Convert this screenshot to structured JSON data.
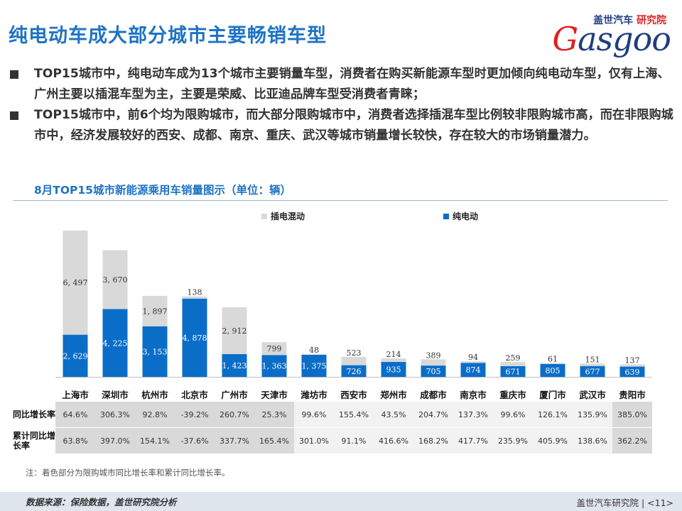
{
  "page": {
    "title": "纯电动车成大部分城市主要畅销车型",
    "bullets": [
      "TOP15城市中，纯电动车成为13个城市主要销量车型，消费者在购买新能源车型时更加倾向纯电动车型，仅有上海、广州主要以插混车型为主，主要是荣威、比亚迪品牌车型受消费者青睐；",
      "TOP15城市中，前6个均为限购城市，而大部分限购城市中，消费者选择插混车型比例较非限购城市高，而在非限购城市中，经济发展较好的西安、成都、南京、重庆、武汉等城市销量增长较快，存在较大的市场销量潜力。"
    ],
    "chart_title": "8月TOP15城市新能源乘用车销量图示（单位：辆）",
    "note": "注：着色部分为限购城市同比增长率和累计同比增长率。",
    "source": "数据来源：保险数据，盖世研究院分析",
    "footer_org": "盖世汽车研究院",
    "page_number": "<11>"
  },
  "logo": {
    "cn_name": "盖世汽车",
    "cn_dept": "研究院",
    "word_g": "G",
    "word_rest": "asgoo"
  },
  "colors": {
    "title_blue": "#1f73c4",
    "bev": "#0a6ec9",
    "phev": "#d9d9d9",
    "restricted_cell": "#d9d9d9",
    "normal_cell": "#f2f2f2"
  },
  "chart_data": {
    "type": "bar",
    "stacked": true,
    "categories": [
      "上海市",
      "深圳市",
      "杭州市",
      "北京市",
      "广州市",
      "天津市",
      "潍坊市",
      "西安市",
      "郑州市",
      "成都市",
      "南京市",
      "重庆市",
      "厦门市",
      "武汉市",
      "贵阳市"
    ],
    "series": [
      {
        "name": "纯电动",
        "color": "#0a6ec9",
        "values": [
          2629,
          4225,
          3153,
          4878,
          1423,
          1363,
          1375,
          726,
          935,
          705,
          874,
          671,
          805,
          677,
          639
        ],
        "labels": [
          "2, 629",
          "4, 225",
          "3, 153",
          "4, 878",
          "1, 423",
          "1, 363",
          "1, 375",
          "726",
          "935",
          "705",
          "874",
          "671",
          "805",
          "677",
          "639"
        ]
      },
      {
        "name": "插电混动",
        "color": "#d9d9d9",
        "values": [
          6497,
          3670,
          1897,
          138,
          2912,
          799,
          48,
          523,
          214,
          389,
          94,
          259,
          61,
          151,
          137
        ],
        "labels": [
          "6, 497",
          "3, 670",
          "1, 897",
          "138",
          "2, 912",
          "799",
          "48",
          "523",
          "214",
          "389",
          "94",
          "259",
          "61",
          "151",
          "137"
        ]
      }
    ],
    "legend_position": "top"
  },
  "table": {
    "rows": [
      {
        "header": "同比增长率",
        "values": [
          "64.6%",
          "306.3%",
          "92.8%",
          "-39.2%",
          "260.7%",
          "25.3%",
          "99.6%",
          "155.4%",
          "43.5%",
          "204.7%",
          "137.3%",
          "99.6%",
          "126.1%",
          "135.9%",
          "385.0%"
        ]
      },
      {
        "header": "累计同比增长率",
        "values": [
          "63.8%",
          "397.0%",
          "154.1%",
          "-37.6%",
          "337.7%",
          "165.4%",
          "301.0%",
          "91.1%",
          "416.6%",
          "168.2%",
          "417.7%",
          "235.9%",
          "405.9%",
          "138.6%",
          "362.2%"
        ]
      }
    ],
    "highlighted_columns": [
      0,
      1,
      2,
      3,
      4,
      5,
      14
    ]
  }
}
